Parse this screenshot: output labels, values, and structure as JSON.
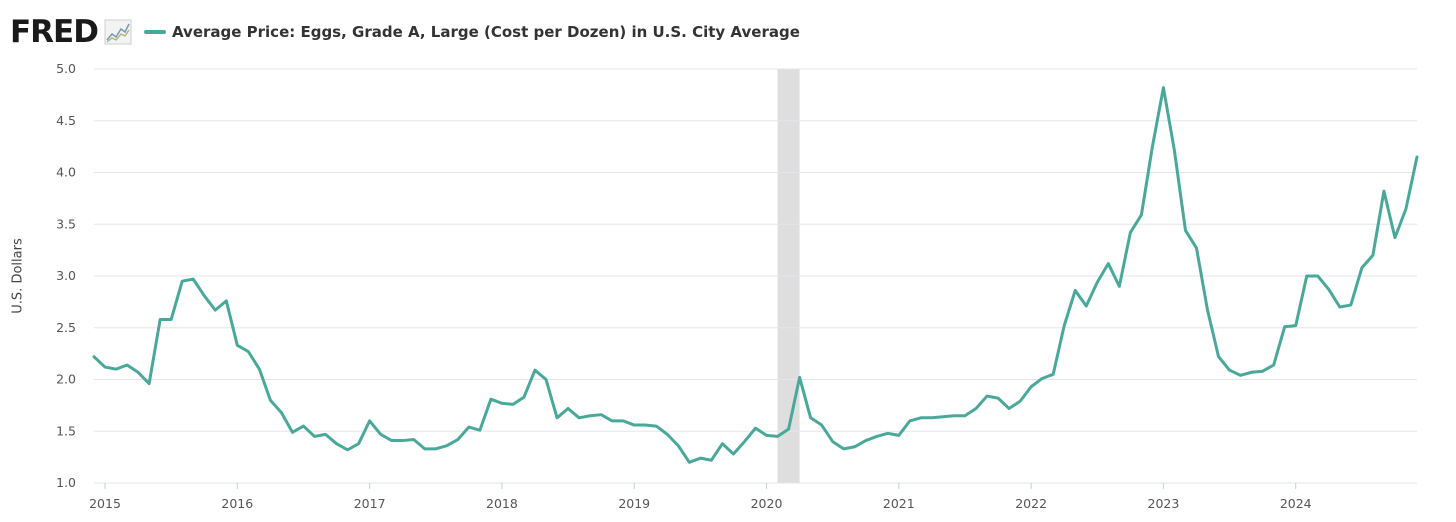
{
  "header": {
    "logo_text": "FRED",
    "legend_label": "Average Price: Eggs, Grade A, Large (Cost per Dozen) in U.S. City Average"
  },
  "colors": {
    "series": "#4aa89b",
    "grid": "#e2e6ec",
    "recession": "#dedede"
  },
  "chart_data": {
    "type": "line",
    "title": "",
    "ylabel": "U.S. Dollars",
    "xlabel": "",
    "ylim": [
      1.0,
      5.0
    ],
    "xlim": [
      "2014-12",
      "2024-12"
    ],
    "grid": true,
    "yticks": [
      "1.0",
      "1.5",
      "2.0",
      "2.5",
      "3.0",
      "3.5",
      "4.0",
      "4.5",
      "5.0"
    ],
    "xticks": [
      "2015",
      "2016",
      "2017",
      "2018",
      "2019",
      "2020",
      "2021",
      "2022",
      "2023",
      "2024"
    ],
    "recession": {
      "start": "2020-02",
      "end": "2020-04"
    },
    "series": [
      {
        "name": "Average Price: Eggs, Grade A, Large (Cost per Dozen) in U.S. City Average",
        "start": "2014-12",
        "values": [
          2.22,
          2.12,
          2.1,
          2.14,
          2.07,
          1.96,
          2.58,
          2.58,
          2.95,
          2.97,
          2.81,
          2.67,
          2.76,
          2.33,
          2.27,
          2.1,
          1.8,
          1.68,
          1.49,
          1.55,
          1.45,
          1.47,
          1.38,
          1.32,
          1.38,
          1.6,
          1.47,
          1.41,
          1.41,
          1.42,
          1.33,
          1.33,
          1.36,
          1.42,
          1.54,
          1.51,
          1.81,
          1.77,
          1.76,
          1.83,
          2.09,
          2.0,
          1.63,
          1.72,
          1.63,
          1.65,
          1.66,
          1.6,
          1.6,
          1.56,
          1.56,
          1.55,
          1.47,
          1.36,
          1.2,
          1.24,
          1.22,
          1.38,
          1.28,
          1.4,
          1.53,
          1.46,
          1.45,
          1.52,
          2.02,
          1.63,
          1.56,
          1.4,
          1.33,
          1.35,
          1.41,
          1.45,
          1.48,
          1.46,
          1.6,
          1.63,
          1.63,
          1.64,
          1.65,
          1.65,
          1.72,
          1.84,
          1.82,
          1.72,
          1.79,
          1.93,
          2.01,
          2.05,
          2.52,
          2.86,
          2.71,
          2.94,
          3.12,
          2.9,
          3.42,
          3.59,
          4.25,
          4.82,
          4.21,
          3.44,
          3.27,
          2.67,
          2.22,
          2.09,
          2.04,
          2.07,
          2.08,
          2.14,
          2.51,
          2.52,
          3.0,
          3.0,
          2.87,
          2.7,
          2.72,
          3.08,
          3.2,
          3.82,
          3.37,
          3.65,
          4.15
        ]
      }
    ]
  }
}
